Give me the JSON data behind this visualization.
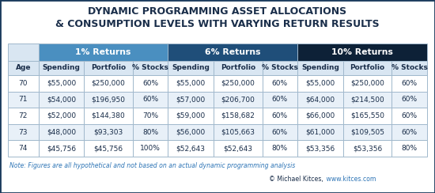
{
  "title_line1": "DYNAMIC PROGRAMMING ASSET ALLOCATIONS",
  "title_line2": "& CONSUMPTION LEVELS WITH VARYING RETURN RESULTS",
  "title_color": "#1a2e4a",
  "background_color": "#ffffff",
  "outer_border_color": "#1a3a5c",
  "header1_color": "#4a8fc0",
  "header2_color": "#1f4e79",
  "header3_color": "#0d2137",
  "col_header_bg": "#d9e6f2",
  "col_header_text": "#1a2e4a",
  "grid_color": "#a0b8cc",
  "note_text": "Note: Figures are all hypothetical and not based on an actual dynamic programming analysis",
  "copyright_text": "© Michael Kitces,",
  "copyright_url": " www.kitces.com",
  "note_color": "#2e75b6",
  "copyright_color": "#1a2e4a",
  "url_color": "#2e75b6",
  "group_headers": [
    "1% Returns",
    "6% Returns",
    "10% Returns"
  ],
  "col_headers": [
    "Age",
    "Spending",
    "Portfolio",
    "% Stocks",
    "Spending",
    "Portfolio",
    "% Stocks",
    "Spending",
    "Portfolio",
    "% Stocks"
  ],
  "rows": [
    [
      "70",
      "$55,000",
      "$250,000",
      "60%",
      "$55,000",
      "$250,000",
      "60%",
      "$55,000",
      "$250,000",
      "60%"
    ],
    [
      "71",
      "$54,000",
      "$196,950",
      "60%",
      "$57,000",
      "$206,700",
      "60%",
      "$64,000",
      "$214,500",
      "60%"
    ],
    [
      "72",
      "$52,000",
      "$144,380",
      "70%",
      "$59,000",
      "$158,682",
      "60%",
      "$66,000",
      "$165,550",
      "60%"
    ],
    [
      "73",
      "$48,000",
      "$93,303",
      "80%",
      "$56,000",
      "$105,663",
      "60%",
      "$61,000",
      "$109,505",
      "60%"
    ],
    [
      "74",
      "$45,756",
      "$45,756",
      "100%",
      "$52,643",
      "$52,643",
      "80%",
      "$53,356",
      "$53,356",
      "80%"
    ]
  ],
  "row_colors": [
    "#ffffff",
    "#e8f0f8",
    "#ffffff",
    "#e8f0f8",
    "#ffffff"
  ],
  "title_fontsize": 9.0,
  "group_header_fontsize": 7.8,
  "col_header_fontsize": 6.5,
  "data_fontsize": 6.5,
  "note_fontsize": 5.6,
  "copyright_fontsize": 5.6
}
